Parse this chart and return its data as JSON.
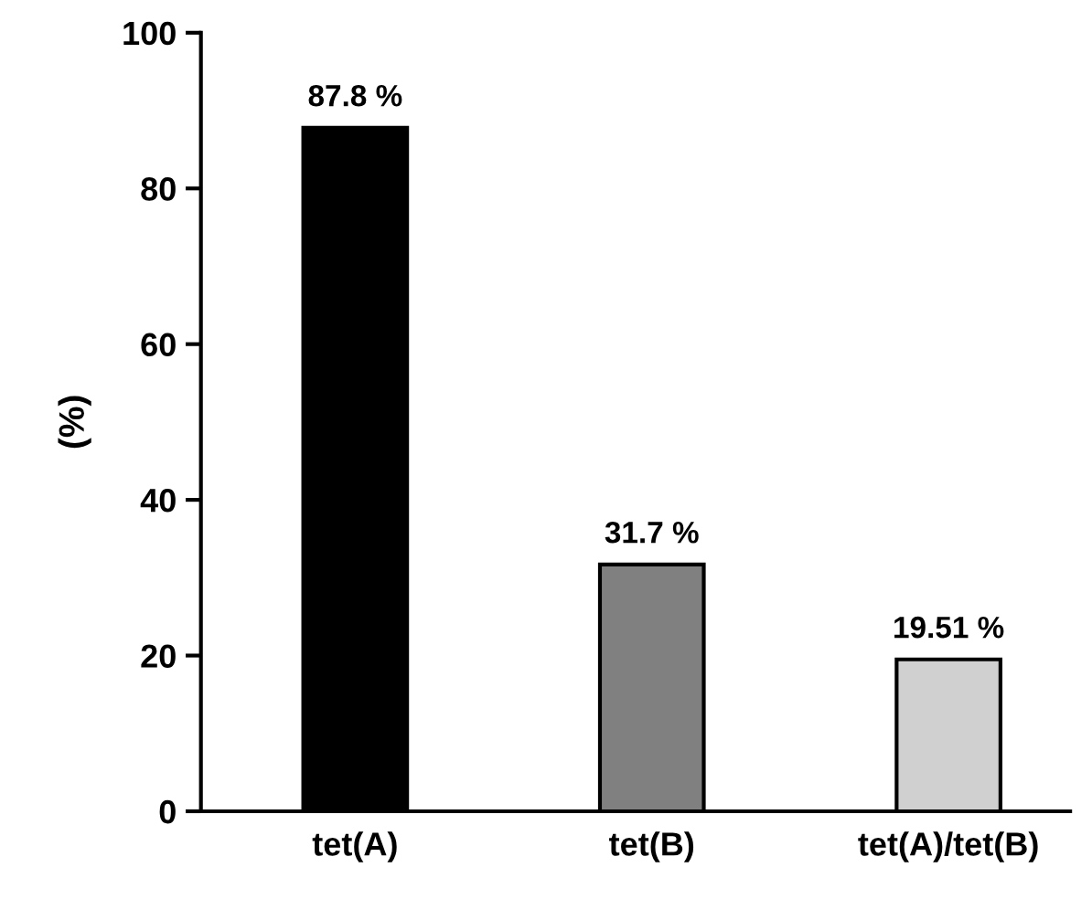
{
  "chart_data": {
    "type": "bar",
    "ylabel": "(%)",
    "categories": [
      "tet(A)",
      "tet(B)",
      "tet(A)/tet(B)"
    ],
    "values": [
      87.8,
      31.7,
      19.51
    ],
    "colors": [
      "#000000",
      "#808080",
      "#d0d0d0"
    ],
    "value_labels": [
      "87.8 %",
      "31.7 %",
      "19.51 %"
    ],
    "ylim": [
      0,
      100
    ],
    "yticks": [
      0,
      20,
      40,
      60,
      80,
      100
    ],
    "grid": false,
    "legend": false
  }
}
